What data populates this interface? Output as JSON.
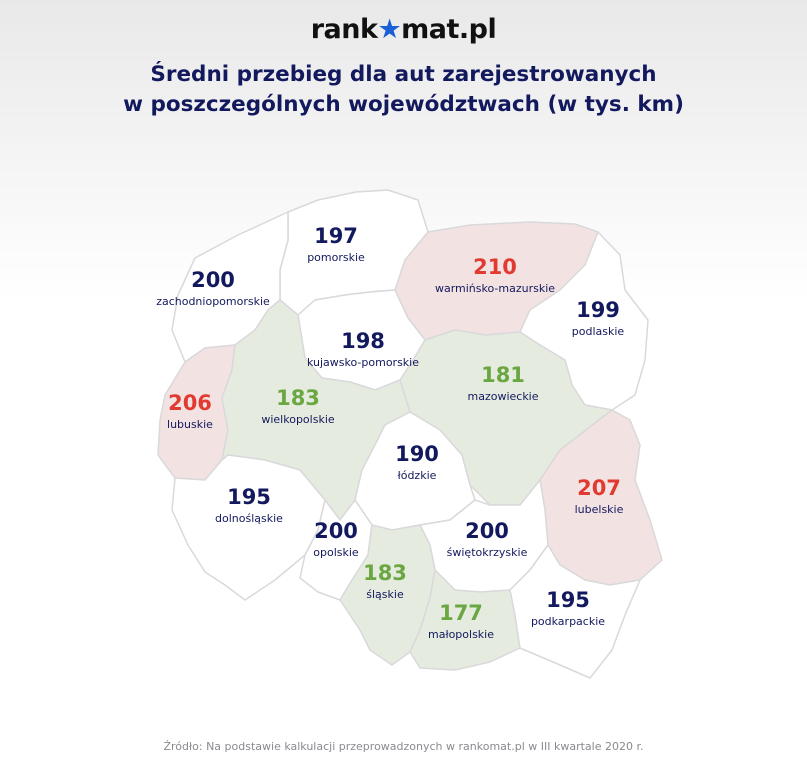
{
  "logo": {
    "part1": "rank",
    "star": "★",
    "part2": "mat.pl"
  },
  "title": {
    "line1": "Średni przebieg dla aut zarejestrowanych",
    "line2": "w poszczególnych województwach (w tys. km)"
  },
  "colors": {
    "navy": "#13195d",
    "red": "#e03a31",
    "green": "#6aa641",
    "fill_white": "#ffffff",
    "fill_green": "#e5ecdf",
    "fill_pink": "#f3e2e2",
    "border": "#d9d9db"
  },
  "regions": [
    {
      "name": "pomorskie",
      "value": "197",
      "category": "navy"
    },
    {
      "name": "warmińsko-mazurskie",
      "value": "210",
      "category": "red"
    },
    {
      "name": "zachodniopomorskie",
      "value": "200",
      "category": "navy"
    },
    {
      "name": "podlaskie",
      "value": "199",
      "category": "navy"
    },
    {
      "name": "kujawsko-pomorskie",
      "value": "198",
      "category": "navy"
    },
    {
      "name": "mazowieckie",
      "value": "181",
      "category": "green"
    },
    {
      "name": "lubuskie",
      "value": "206",
      "category": "red"
    },
    {
      "name": "wielkopolskie",
      "value": "183",
      "category": "green"
    },
    {
      "name": "łódzkie",
      "value": "190",
      "category": "navy"
    },
    {
      "name": "lubelskie",
      "value": "207",
      "category": "red"
    },
    {
      "name": "dolnośląskie",
      "value": "195",
      "category": "navy"
    },
    {
      "name": "opolskie",
      "value": "200",
      "category": "navy"
    },
    {
      "name": "świętokrzyskie",
      "value": "200",
      "category": "navy"
    },
    {
      "name": "śląskie",
      "value": "183",
      "category": "green"
    },
    {
      "name": "małopolskie",
      "value": "177",
      "category": "green"
    },
    {
      "name": "podkarpackie",
      "value": "195",
      "category": "navy"
    }
  ],
  "footer": "Źródło: Na podstawie kalkulacji przeprowadzonych w rankomat.pl w III kwartale 2020 r."
}
